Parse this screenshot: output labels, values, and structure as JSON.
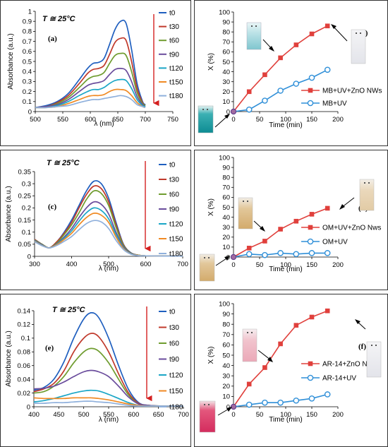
{
  "spectra_colors": [
    "#1f5fbf",
    "#c0392b",
    "#6f9c2f",
    "#6a4c9c",
    "#1aa6c6",
    "#f08a24",
    "#8fb0dc"
  ],
  "series_colors": {
    "znO": "#e0403c",
    "uv": "#2f8fd8"
  },
  "chart_data": [
    {
      "id": "a",
      "type": "line",
      "panel_label": "(a)",
      "temperature_label": "T ≅ 25°C",
      "xlabel": "λ (nm)",
      "ylabel": "Absorbance (a.u.)",
      "xlim": [
        500,
        750
      ],
      "ylim": [
        0,
        1.0
      ],
      "x_ticks": [
        500,
        550,
        600,
        650,
        700,
        750
      ],
      "y_ticks": [
        0,
        0.1,
        0.2,
        0.3,
        0.4,
        0.5,
        0.6,
        0.7,
        0.8,
        0.9,
        1
      ],
      "x": [
        500,
        520,
        540,
        560,
        580,
        595,
        605,
        615,
        625,
        635,
        645,
        655,
        665,
        675,
        685,
        695,
        700
      ],
      "series": [
        {
          "name": "t0",
          "values": [
            0.04,
            0.06,
            0.1,
            0.18,
            0.32,
            0.43,
            0.48,
            0.49,
            0.53,
            0.67,
            0.82,
            0.9,
            0.88,
            0.62,
            0.28,
            0.1,
            0.07
          ]
        },
        {
          "name": "t30",
          "values": [
            0.04,
            0.05,
            0.09,
            0.16,
            0.28,
            0.38,
            0.42,
            0.43,
            0.46,
            0.57,
            0.69,
            0.73,
            0.71,
            0.5,
            0.23,
            0.09,
            0.06
          ]
        },
        {
          "name": "t60",
          "values": [
            0.04,
            0.05,
            0.08,
            0.14,
            0.24,
            0.32,
            0.35,
            0.36,
            0.39,
            0.48,
            0.56,
            0.58,
            0.56,
            0.4,
            0.19,
            0.08,
            0.06
          ]
        },
        {
          "name": "t90",
          "values": [
            0.04,
            0.05,
            0.07,
            0.12,
            0.2,
            0.26,
            0.28,
            0.29,
            0.31,
            0.37,
            0.42,
            0.43,
            0.41,
            0.3,
            0.15,
            0.07,
            0.05
          ]
        },
        {
          "name": "t120",
          "values": [
            0.04,
            0.04,
            0.06,
            0.1,
            0.16,
            0.2,
            0.22,
            0.22,
            0.24,
            0.28,
            0.31,
            0.32,
            0.31,
            0.23,
            0.12,
            0.06,
            0.05
          ]
        },
        {
          "name": "t150",
          "values": [
            0.04,
            0.04,
            0.05,
            0.08,
            0.12,
            0.15,
            0.16,
            0.16,
            0.17,
            0.2,
            0.22,
            0.22,
            0.21,
            0.16,
            0.09,
            0.05,
            0.04
          ]
        },
        {
          "name": "t180",
          "values": [
            0.04,
            0.04,
            0.05,
            0.06,
            0.09,
            0.11,
            0.12,
            0.12,
            0.13,
            0.14,
            0.15,
            0.16,
            0.15,
            0.12,
            0.07,
            0.05,
            0.04
          ]
        }
      ]
    },
    {
      "id": "b",
      "type": "line",
      "panel_label": "(b)",
      "xlabel": "Time (min)",
      "ylabel": "X (%)",
      "xlim": [
        0,
        200
      ],
      "ylim": [
        0,
        100
      ],
      "x_ticks": [
        0,
        50,
        100,
        150,
        200
      ],
      "y_ticks": [
        0,
        10,
        20,
        30,
        40,
        50,
        60,
        70,
        80,
        90,
        100
      ],
      "x": [
        0,
        30,
        60,
        90,
        120,
        150,
        180
      ],
      "series": [
        {
          "name": "MB+UV+ZnO NWs",
          "marker": "square",
          "values": [
            0,
            20,
            37,
            54,
            67,
            78,
            86
          ]
        },
        {
          "name": "MB+UV",
          "marker": "circle",
          "values": [
            0,
            2,
            11,
            21,
            28,
            34,
            42
          ]
        }
      ]
    },
    {
      "id": "c",
      "type": "line",
      "panel_label": "(c)",
      "temperature_label": "T ≅ 25°C",
      "xlabel": "λ (nm)",
      "ylabel": "Absorbance (a.u.)",
      "xlim": [
        300,
        700
      ],
      "ylim": [
        0,
        0.35
      ],
      "x_ticks": [
        300,
        400,
        500,
        600,
        700
      ],
      "y_ticks": [
        0,
        0.05,
        0.1,
        0.15,
        0.2,
        0.25,
        0.3,
        0.35
      ],
      "x": [
        300,
        320,
        340,
        360,
        380,
        400,
        420,
        440,
        460,
        480,
        500,
        520,
        540,
        560,
        580,
        600,
        650,
        700
      ],
      "series": [
        {
          "name": "t0",
          "values": [
            0.07,
            0.05,
            0.035,
            0.06,
            0.1,
            0.15,
            0.21,
            0.27,
            0.31,
            0.3,
            0.24,
            0.14,
            0.05,
            0.015,
            0.005,
            0.002,
            0.001,
            0.001
          ]
        },
        {
          "name": "t30",
          "values": [
            0.07,
            0.05,
            0.035,
            0.06,
            0.095,
            0.14,
            0.2,
            0.255,
            0.29,
            0.28,
            0.225,
            0.13,
            0.048,
            0.014,
            0.005,
            0.002,
            0.001,
            0.001
          ]
        },
        {
          "name": "t60",
          "values": [
            0.068,
            0.05,
            0.035,
            0.055,
            0.09,
            0.13,
            0.18,
            0.235,
            0.27,
            0.26,
            0.21,
            0.12,
            0.045,
            0.013,
            0.005,
            0.002,
            0.001,
            0.001
          ]
        },
        {
          "name": "t90",
          "values": [
            0.066,
            0.048,
            0.035,
            0.052,
            0.08,
            0.115,
            0.16,
            0.2,
            0.225,
            0.215,
            0.175,
            0.1,
            0.04,
            0.012,
            0.004,
            0.002,
            0.001,
            0.001
          ]
        },
        {
          "name": "t120",
          "values": [
            0.064,
            0.046,
            0.035,
            0.05,
            0.075,
            0.105,
            0.145,
            0.18,
            0.2,
            0.19,
            0.155,
            0.09,
            0.035,
            0.011,
            0.004,
            0.002,
            0.001,
            0.001
          ]
        },
        {
          "name": "t150",
          "values": [
            0.062,
            0.045,
            0.035,
            0.048,
            0.07,
            0.095,
            0.13,
            0.16,
            0.178,
            0.17,
            0.14,
            0.08,
            0.032,
            0.01,
            0.004,
            0.002,
            0.001,
            0.001
          ]
        },
        {
          "name": "t180",
          "values": [
            0.06,
            0.044,
            0.035,
            0.045,
            0.062,
            0.082,
            0.11,
            0.135,
            0.148,
            0.142,
            0.115,
            0.066,
            0.028,
            0.009,
            0.003,
            0.002,
            0.001,
            0.001
          ]
        }
      ]
    },
    {
      "id": "d",
      "type": "line",
      "panel_label": "(d)",
      "xlabel": "Time (min)",
      "ylabel": "X (%)",
      "xlim": [
        0,
        200
      ],
      "ylim": [
        0,
        100
      ],
      "x_ticks": [
        0,
        50,
        100,
        150,
        200
      ],
      "y_ticks": [
        0,
        10,
        20,
        30,
        40,
        50,
        60,
        70,
        80,
        90,
        100
      ],
      "x": [
        0,
        30,
        60,
        90,
        120,
        150,
        180
      ],
      "series": [
        {
          "name": "OM+UV+ZnO Nws",
          "marker": "square",
          "values": [
            0,
            9,
            16,
            28,
            36,
            43,
            49
          ]
        },
        {
          "name": "OM+UV",
          "marker": "circle",
          "values": [
            0,
            3,
            2,
            4,
            3,
            4,
            4
          ]
        }
      ]
    },
    {
      "id": "e",
      "type": "line",
      "panel_label": "(e)",
      "temperature_label": "T ≅ 25°C",
      "xlabel": "λ (nm)",
      "ylabel": "Absorbance (a.u.)",
      "xlim": [
        400,
        700
      ],
      "ylim": [
        0,
        0.14
      ],
      "x_ticks": [
        400,
        450,
        500,
        550,
        600,
        650,
        700
      ],
      "y_ticks": [
        0,
        0.02,
        0.04,
        0.06,
        0.08,
        0.1,
        0.12,
        0.14
      ],
      "x": [
        400,
        420,
        440,
        460,
        480,
        500,
        515,
        530,
        550,
        570,
        590,
        610,
        630,
        660,
        700
      ],
      "series": [
        {
          "name": "t0",
          "values": [
            0.024,
            0.028,
            0.04,
            0.065,
            0.1,
            0.128,
            0.137,
            0.13,
            0.1,
            0.06,
            0.025,
            0.006,
            0.002,
            0.001,
            0.001
          ]
        },
        {
          "name": "t30",
          "values": [
            0.022,
            0.026,
            0.034,
            0.052,
            0.08,
            0.1,
            0.107,
            0.102,
            0.08,
            0.048,
            0.02,
            0.005,
            0.002,
            0.001,
            0.001
          ]
        },
        {
          "name": "t60",
          "values": [
            0.02,
            0.022,
            0.03,
            0.044,
            0.064,
            0.08,
            0.085,
            0.081,
            0.064,
            0.04,
            0.017,
            0.004,
            0.002,
            0.001,
            0.001
          ]
        },
        {
          "name": "t90",
          "values": [
            0.026,
            0.027,
            0.03,
            0.036,
            0.044,
            0.051,
            0.053,
            0.051,
            0.044,
            0.03,
            0.014,
            0.004,
            0.002,
            0.001,
            0.001
          ]
        },
        {
          "name": "t120",
          "values": [
            0.007,
            0.009,
            0.012,
            0.016,
            0.02,
            0.023,
            0.024,
            0.023,
            0.018,
            0.012,
            0.006,
            0.002,
            0.001,
            0.001,
            0.001
          ]
        },
        {
          "name": "t150",
          "values": [
            0.013,
            0.012,
            0.012,
            0.012,
            0.013,
            0.013,
            0.013,
            0.012,
            0.01,
            0.007,
            0.004,
            0.002,
            0.001,
            0.001,
            0.001
          ]
        },
        {
          "name": "t180",
          "values": [
            0.005,
            0.005,
            0.006,
            0.006,
            0.007,
            0.008,
            0.008,
            0.007,
            0.006,
            0.004,
            0.002,
            0.001,
            0.001,
            0.001,
            0.001
          ]
        }
      ]
    },
    {
      "id": "f",
      "type": "line",
      "panel_label": "(f)",
      "xlabel": "Time (min)",
      "ylabel": "X (%)",
      "xlim": [
        0,
        200
      ],
      "ylim": [
        0,
        100
      ],
      "x_ticks": [
        0,
        50,
        100,
        150,
        200
      ],
      "y_ticks": [
        0,
        10,
        20,
        30,
        40,
        50,
        60,
        70,
        80,
        90,
        100
      ],
      "x": [
        0,
        30,
        60,
        90,
        120,
        150,
        180
      ],
      "series": [
        {
          "name": "AR-14+ZnO NWs",
          "marker": "square",
          "values": [
            0,
            22,
            38,
            61,
            79,
            87,
            93
          ]
        },
        {
          "name": "AR-14+UV",
          "marker": "circle",
          "values": [
            0,
            2,
            4,
            4,
            6,
            8,
            12
          ]
        }
      ]
    }
  ]
}
